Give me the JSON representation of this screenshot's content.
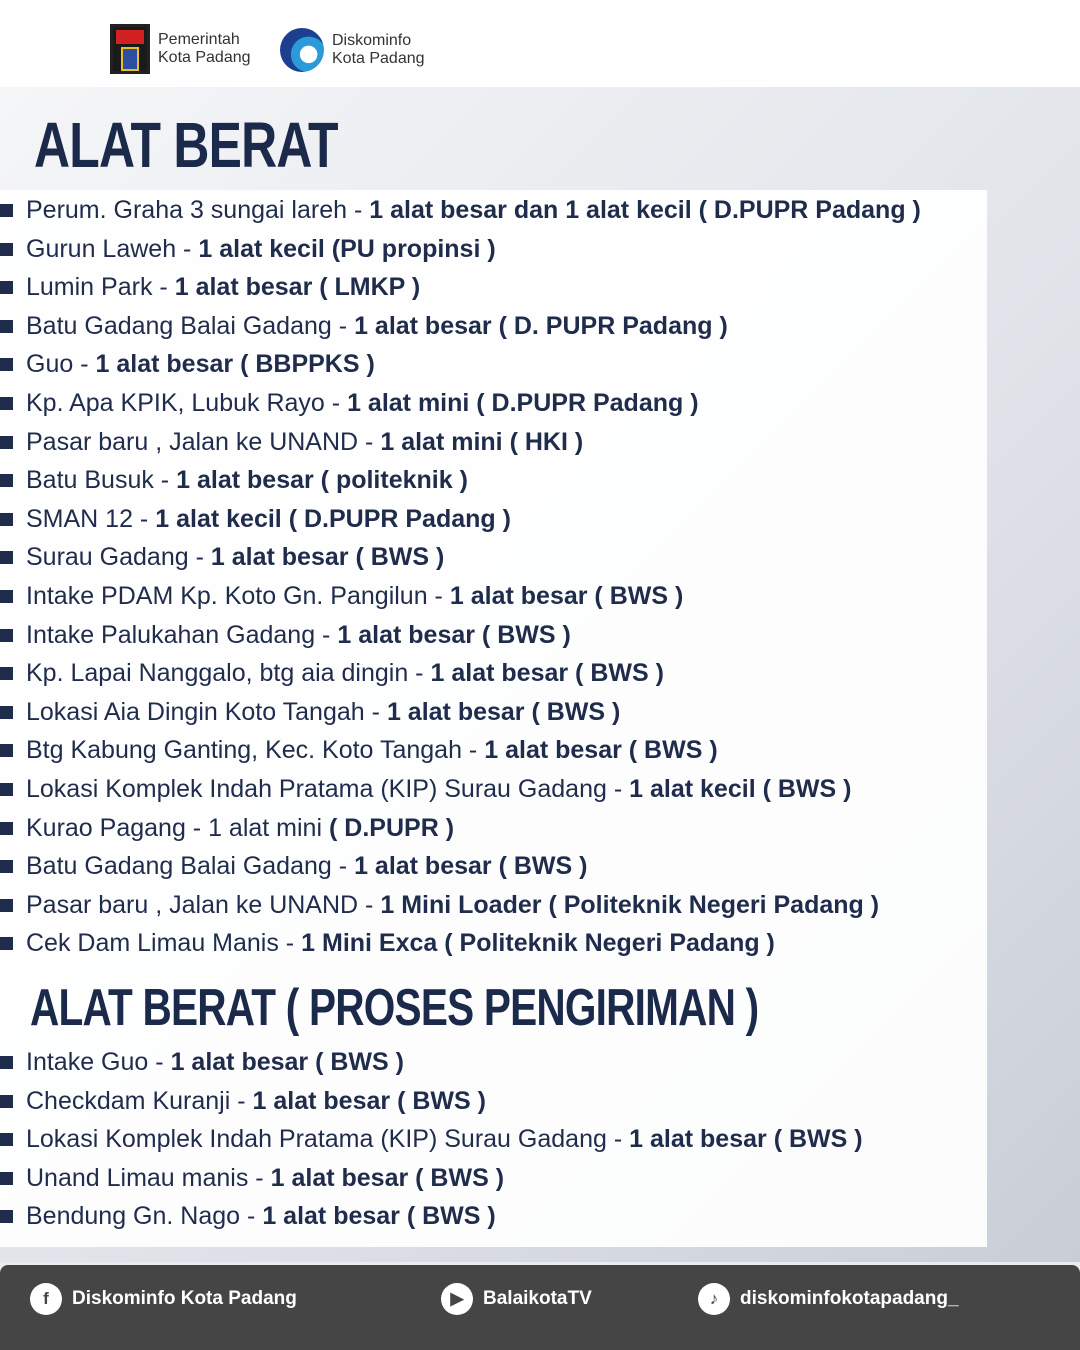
{
  "header": {
    "logo1": [
      "Pemerintah",
      "Kota Padang"
    ],
    "logo2": [
      "Diskominfo",
      "Kota Padang"
    ]
  },
  "section1": {
    "title": "ALAT BERAT",
    "items": [
      {
        "loc": "Perum. Graha 3 sungai lareh -",
        "detail": "1 alat besar dan 1 alat kecil ( D.PUPR Padang )"
      },
      {
        "loc": "Gurun Laweh -",
        "detail": "1 alat kecil (PU propinsi )"
      },
      {
        "loc": "Lumin Park -",
        "detail": "1 alat besar    ( LMKP )"
      },
      {
        "loc": "Batu Gadang Balai Gadang -",
        "detail": "1 alat besar ( D. PUPR Padang )"
      },
      {
        "loc": "Guo -",
        "detail": "1 alat besar  (  BBPPKS )"
      },
      {
        "loc": "Kp. Apa KPIK, Lubuk Rayo -",
        "detail": "1 alat mini   ( D.PUPR Padang )"
      },
      {
        "loc": "Pasar baru , Jalan ke UNAND -",
        "detail": "1 alat mini  ( HKI )"
      },
      {
        "loc": "Batu Busuk  -",
        "detail": "1 alat besar  ( politeknik )"
      },
      {
        "loc": "SMAN 12 -",
        "detail": "1 alat kecil   ( D.PUPR Padang )"
      },
      {
        "loc": "Surau Gadang -",
        "detail": "1 alat besar ( BWS )"
      },
      {
        "loc": "Intake PDAM Kp. Koto Gn. Pangilun -",
        "detail": "1 alat besar (  BWS )"
      },
      {
        "loc": "Intake Palukahan Gadang -",
        "detail": "1 alat besar   ( BWS )"
      },
      {
        "loc": "Kp. Lapai Nanggalo, btg aia dingin -",
        "detail": "1 alat besar ( BWS )"
      },
      {
        "loc": "Lokasi Aia Dingin Koto Tangah -",
        "detail": "1 alat besar ( BWS )"
      },
      {
        "loc": "Btg Kabung Ganting, Kec. Koto Tangah -",
        "detail": "1 alat besar  ( BWS )"
      },
      {
        "loc": "Lokasi Komplek Indah Pratama (KIP) Surau Gadang -",
        "detail": "1 alat kecil   ( BWS )"
      },
      {
        "loc": "Kurao Pagang - 1 alat mini",
        "detail": "( D.PUPR )"
      },
      {
        "loc": "Batu Gadang Balai Gadang -",
        "detail": "1 alat besar  ( BWS )"
      },
      {
        "loc": "Pasar baru , Jalan ke UNAND -",
        "detail": "1 Mini Loader ( Politeknik Negeri Padang )"
      },
      {
        "loc": "Cek Dam Limau Manis -",
        "detail": "1 Mini Exca ( Politeknik Negeri Padang )"
      }
    ]
  },
  "section2": {
    "title": "ALAT BERAT ( PROSES PENGIRIMAN )",
    "items": [
      {
        "loc": "Intake Guo -",
        "detail": "1 alat besar  ( BWS )"
      },
      {
        "loc": "Checkdam Kuranji  -",
        "detail": "1 alat besar  (  BWS )"
      },
      {
        "loc": "Lokasi Komplek Indah Pratama (KIP) Surau Gadang -",
        "detail": "1 alat besar  ( BWS )"
      },
      {
        "loc": "Unand Limau manis -",
        "detail": "1 alat besar  ( BWS )"
      },
      {
        "loc": "Bendung Gn. Nago -",
        "detail": "1 alat besar   ( BWS )"
      }
    ]
  },
  "footer": {
    "facebook": "Diskominfo Kota Padang",
    "youtube": "BalaikotaTV",
    "tiktok": "diskominfokotapadang_"
  }
}
